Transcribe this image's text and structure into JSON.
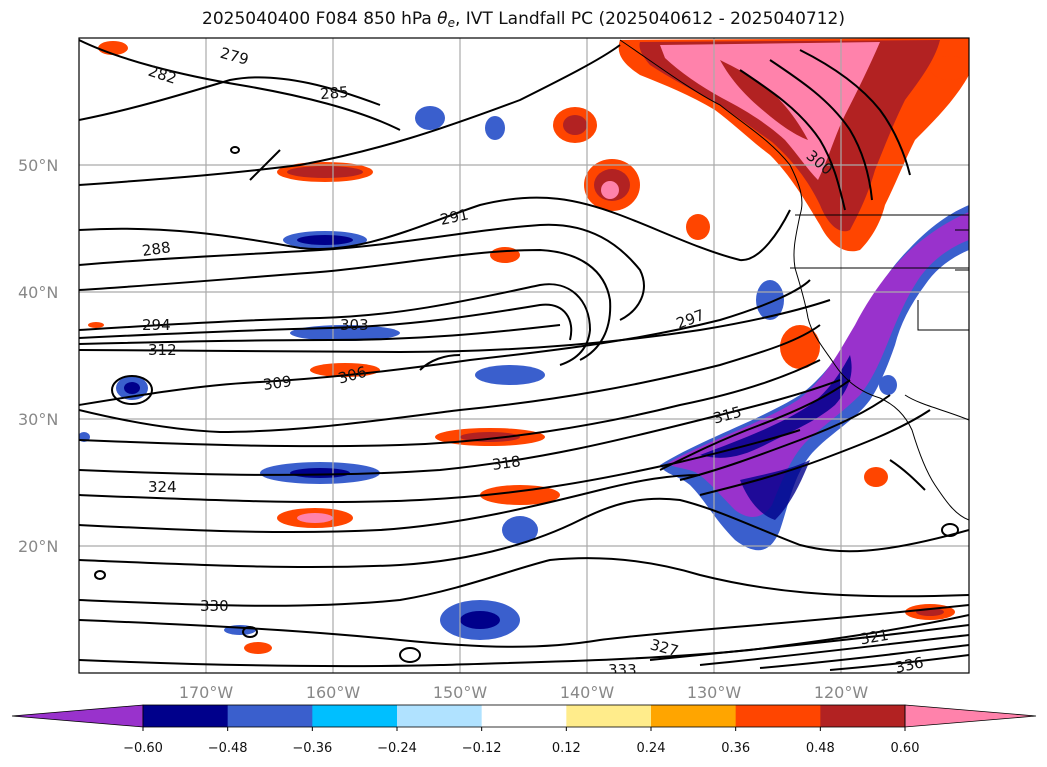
{
  "title": {
    "prefix": "2025040400 F084 850 hPa ",
    "theta": "θ",
    "sub": "e",
    "suffix": ", IVT Landfall PC (2025040612 - 2025040712)"
  },
  "map": {
    "region": "North Pacific",
    "lat_labels": [
      "50°N",
      "40°N",
      "30°N",
      "20°N"
    ],
    "lon_labels": [
      "170°W",
      "160°W",
      "150°W",
      "140°W",
      "130°W",
      "120°W"
    ],
    "contour_field": "850 hPa theta-e",
    "contour_labels": [
      "279",
      "282",
      "285",
      "288",
      "291",
      "294",
      "297",
      "300",
      "303",
      "306",
      "309",
      "312",
      "315",
      "318",
      "321",
      "324",
      "327",
      "330",
      "333",
      "336"
    ],
    "shaded_field": "IVT Landfall PC"
  },
  "colorbar": {
    "ticks": [
      "−0.60",
      "−0.48",
      "−0.36",
      "−0.24",
      "−0.12",
      "0.12",
      "0.24",
      "0.36",
      "0.48",
      "0.60"
    ],
    "colors": [
      "#9932cc",
      "#00008b",
      "#3a5fcd",
      "#00bfff",
      "#b0e2ff",
      "#ffffff",
      "#ffec8b",
      "#ffa500",
      "#ff4500",
      "#b22222",
      "#ff82ab"
    ],
    "extend": "both"
  },
  "colors": {
    "contour": "#000000",
    "grid": "#aaaaaa",
    "label": "#888888"
  }
}
